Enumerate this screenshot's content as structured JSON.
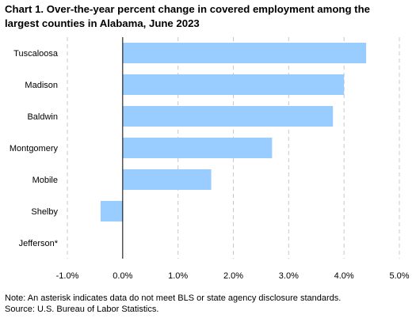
{
  "title": "Chart 1. Over-the-year percent change in covered employment among the largest counties in Alabama, June 2023",
  "note": "Note: An asterisk indicates data do not meet BLS or state agency disclosure standards.",
  "source": "Source: U.S. Bureau of Labor Statistics.",
  "colors": {
    "bar": "#99ccff",
    "axis": "#000000",
    "grid": "#c8c8c8"
  },
  "chart_data": {
    "type": "bar",
    "orientation": "horizontal",
    "categories": [
      "Tuscaloosa",
      "Madison",
      "Baldwin",
      "Montgomery",
      "Mobile",
      "Shelby",
      "Jefferson*"
    ],
    "values": [
      4.4,
      4.0,
      3.8,
      2.7,
      1.6,
      -0.4,
      null
    ],
    "xlim": [
      -1.0,
      5.0
    ],
    "x_ticks": [
      "-1.0%",
      "0.0%",
      "1.0%",
      "2.0%",
      "3.0%",
      "4.0%",
      "5.0%"
    ],
    "x_tick_values": [
      -1,
      0,
      1,
      2,
      3,
      4,
      5
    ],
    "grid": "vertical dashed",
    "legend": "none",
    "xlabel": "",
    "ylabel": ""
  }
}
